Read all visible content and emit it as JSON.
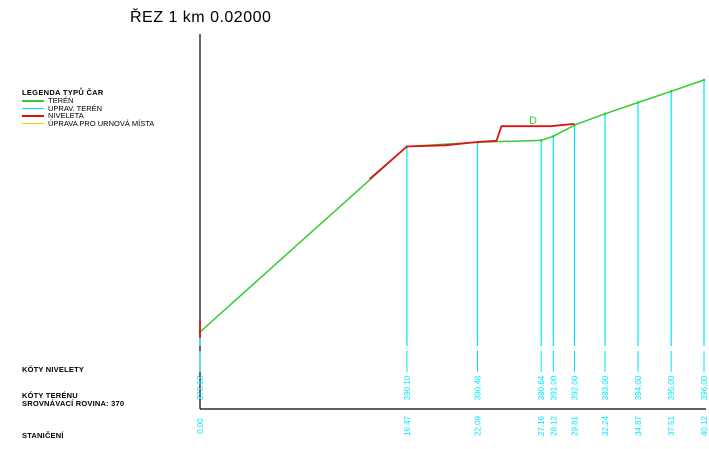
{
  "title": "ŘEZ 1 km 0.02000",
  "colors": {
    "teren": "#33cc33",
    "uprav": "#00e5ff",
    "niveleta": "#dd1111",
    "urnova": "#f2d000",
    "axis": "#000000"
  },
  "legend": {
    "heading": "LEGENDA TYPŮ ČAR",
    "items": [
      {
        "label": "TERÉN",
        "color": "#33cc33"
      },
      {
        "label": "UPRAV. TERÉN",
        "color": "#00e5ff"
      },
      {
        "label": "NIVELETA",
        "color": "#dd1111"
      },
      {
        "label": "ÚPRAVA PRO URNOVÁ MÍSTA",
        "color": "#f2d000"
      }
    ]
  },
  "labels": {
    "koty_nivelety": "KÓTY NIVELETY",
    "koty_terenu": "KÓTY TERÉNU",
    "srovnavaci": "SROVNÁVACÍ ROVINA: 370",
    "staniceni": "STANIČENÍ"
  },
  "annotation": "D",
  "chart_data": {
    "type": "line",
    "x_unit": "m",
    "y_datum": 370,
    "terrain": {
      "stations": [
        0.0,
        16.47,
        22.09,
        27.16,
        28.12,
        29.81,
        32.24,
        34.87,
        37.51,
        40.12
      ],
      "elevations": [
        373.63,
        390.1,
        390.48,
        390.64,
        391.0,
        392.0,
        393.0,
        394.0,
        395.0,
        396.0
      ],
      "station_labels": [
        "0.00",
        "16.47",
        "22.09",
        "27.16",
        "28.12",
        "29.81",
        "32.24",
        "34.87",
        "37.51",
        "40.12"
      ],
      "elevation_labels": [
        "373.63",
        "390.10",
        "390.48",
        "390.64",
        "391.00",
        "392.00",
        "393.00",
        "394.00",
        "395.00",
        "396.00"
      ]
    },
    "niveleta": [
      {
        "x": [
          13.5,
          16.47,
          19.5,
          22.09,
          23.6,
          24.0,
          27.9,
          29.8
        ],
        "y": [
          387.2,
          390.1,
          390.2,
          390.5,
          390.6,
          391.9,
          391.9,
          392.1
        ]
      },
      {
        "x": [
          0.0,
          0.0
        ],
        "y": [
          373.1,
          374.6
        ]
      }
    ]
  }
}
